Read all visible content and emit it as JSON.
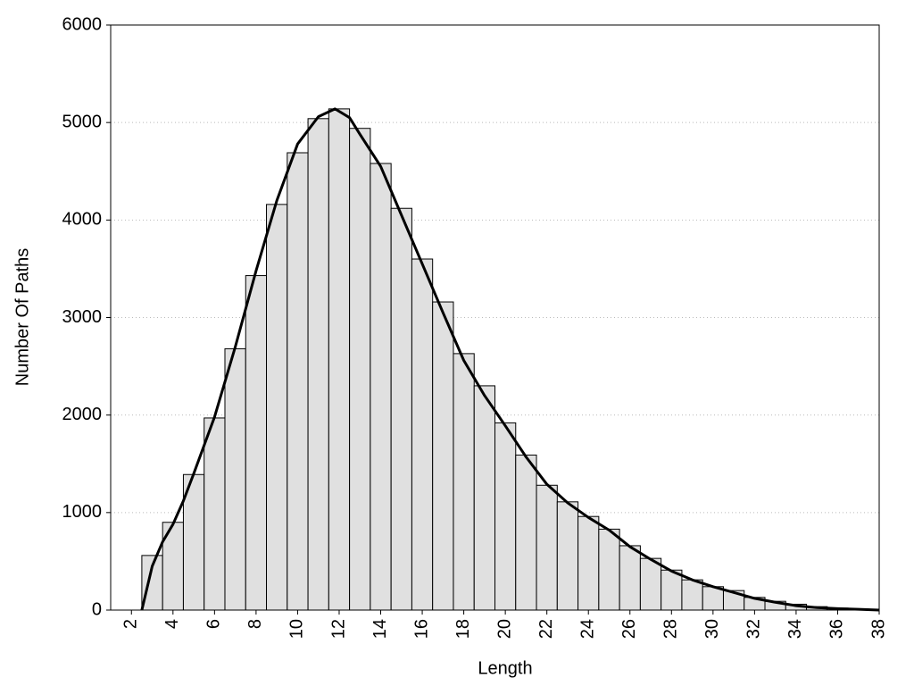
{
  "chart_data": {
    "type": "histogram",
    "x_label": "Length",
    "y_label": "Number Of Paths",
    "bins": [
      2.5,
      3.5,
      4.5,
      5.5,
      6.5,
      7.5,
      8.5,
      9.5,
      10.5,
      11.5,
      12.5,
      13.5,
      14.5,
      15.5,
      16.5,
      17.5,
      18.5,
      19.5,
      20.5,
      21.5,
      22.5,
      23.5,
      24.5,
      25.5,
      26.5,
      27.5,
      28.5,
      29.5,
      30.5,
      31.5,
      32.5,
      33.5,
      34.5,
      35.5,
      36.5,
      37.5
    ],
    "values": [
      560,
      900,
      1390,
      1970,
      2680,
      3430,
      4160,
      4690,
      5040,
      5140,
      4940,
      4580,
      4120,
      3600,
      3160,
      2630,
      2300,
      1920,
      1590,
      1280,
      1110,
      960,
      830,
      660,
      530,
      410,
      310,
      240,
      200,
      130,
      90,
      60,
      35,
      20,
      10
    ],
    "color": "#e0e0e0",
    "line": {
      "color": "#000000",
      "x": [
        2.5,
        3,
        3.5,
        4,
        4.5,
        5,
        6,
        7,
        8,
        9,
        10,
        11,
        11.8,
        12.5,
        13,
        14,
        15,
        16,
        17,
        18,
        19,
        20,
        21,
        22,
        23,
        24,
        25,
        26,
        27,
        28,
        29,
        30,
        31,
        32,
        33,
        34,
        35,
        36,
        37,
        38
      ],
      "values": [
        0,
        450,
        700,
        880,
        1120,
        1400,
        1980,
        2700,
        3480,
        4200,
        4780,
        5060,
        5140,
        5050,
        4880,
        4550,
        4050,
        3550,
        3050,
        2560,
        2200,
        1890,
        1570,
        1290,
        1100,
        950,
        820,
        650,
        520,
        400,
        310,
        240,
        180,
        120,
        80,
        45,
        25,
        15,
        8,
        0
      ]
    },
    "xlim": [
      1,
      38
    ],
    "xticks": [
      2,
      4,
      6,
      8,
      10,
      12,
      14,
      16,
      18,
      20,
      22,
      24,
      26,
      28,
      30,
      32,
      34,
      36,
      38
    ],
    "ylim": [
      0,
      6000
    ],
    "yticks": [
      0,
      1000,
      2000,
      3000,
      4000,
      5000,
      6000
    ],
    "grid": true
  }
}
